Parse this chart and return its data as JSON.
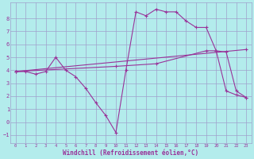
{
  "bg_color": "#b3ecec",
  "grid_color": "#a0a0cc",
  "line_color": "#993399",
  "xlabel": "Windchill (Refroidissement éolien,°C)",
  "xlim": [
    -0.5,
    23.5
  ],
  "ylim": [
    -1.6,
    9.2
  ],
  "yticks": [
    -1,
    0,
    1,
    2,
    3,
    4,
    5,
    6,
    7,
    8
  ],
  "xticks": [
    0,
    1,
    2,
    3,
    4,
    5,
    6,
    7,
    8,
    9,
    10,
    11,
    12,
    13,
    14,
    15,
    16,
    17,
    18,
    19,
    20,
    21,
    22,
    23
  ],
  "line1_x": [
    0,
    1,
    2,
    3,
    4,
    5,
    6,
    7,
    8,
    9,
    10,
    11,
    12,
    13,
    14,
    15,
    16,
    17,
    18,
    19,
    20,
    21,
    22,
    23
  ],
  "line1_y": [
    3.9,
    3.9,
    3.7,
    3.9,
    5.0,
    4.0,
    3.5,
    2.6,
    1.5,
    0.5,
    -0.8,
    4.0,
    8.5,
    8.2,
    8.7,
    8.5,
    8.5,
    7.8,
    7.3,
    7.3,
    5.5,
    2.4,
    2.1,
    1.9
  ],
  "line2_x": [
    0,
    23
  ],
  "line2_y": [
    3.9,
    5.6
  ],
  "line3_x": [
    0,
    10,
    14,
    19,
    20,
    21,
    22,
    23
  ],
  "line3_y": [
    3.9,
    4.3,
    4.5,
    5.5,
    5.5,
    5.4,
    2.4,
    1.9
  ]
}
